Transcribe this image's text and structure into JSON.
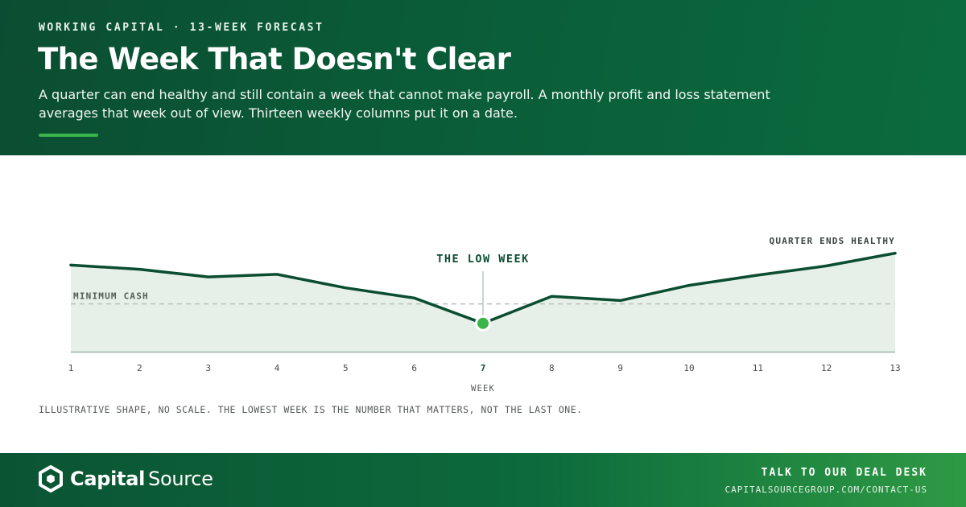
{
  "header": {
    "eyebrow": "WORKING CAPITAL · 13-WEEK FORECAST",
    "title": "The Week That Doesn't Clear",
    "subtitle": "A quarter can end healthy and still contain a week that cannot make payroll. A monthly profit and loss statement averages that week out of view. Thirteen weekly columns put it on a date."
  },
  "chart_data": {
    "type": "area",
    "x": [
      1,
      2,
      3,
      4,
      5,
      6,
      7,
      8,
      9,
      10,
      11,
      12,
      13
    ],
    "xlabel": "WEEK",
    "ylabel": "",
    "values": [
      86,
      81,
      72,
      75,
      59,
      47,
      17,
      49,
      44,
      62,
      74,
      85,
      100
    ],
    "ylim": [
      -17,
      113
    ],
    "minimum_cash_level": 40,
    "minimum_cash_label": "MINIMUM CASH",
    "low_week": 7,
    "low_week_label": "THE LOW WEEK",
    "end_label": "QUARTER ENDS HEALTHY",
    "grid": false,
    "colors": {
      "line": "#0b4d30",
      "fill": "#e6f0e8",
      "marker": "#3ab54a",
      "threshold": "#b9bfbb",
      "axis": "#9fb3a6"
    }
  },
  "caption": "ILLUSTRATIVE SHAPE, NO SCALE. THE LOWEST WEEK IS THE NUMBER THAT MATTERS, NOT THE LAST ONE.",
  "footer": {
    "logo_icon": "hexagon-logo-icon",
    "brand_bold": "Capital",
    "brand_regular": "Source",
    "cta_title": "TALK TO OUR DEAL DESK",
    "cta_url": "CAPITALSOURCEGROUP.COM/CONTACT-US"
  }
}
